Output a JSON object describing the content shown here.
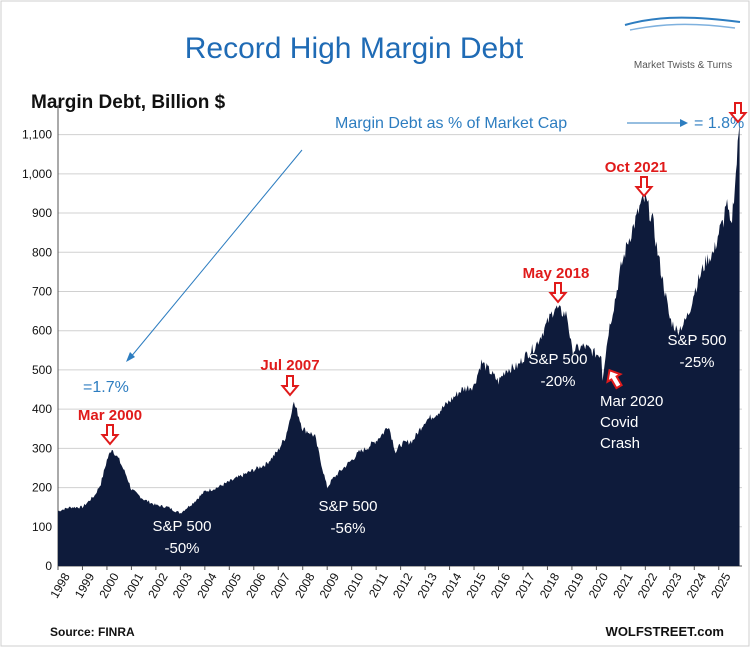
{
  "header": {
    "title": "Record High Margin Debt",
    "logo_text": "Market Twists & Turns"
  },
  "colors": {
    "area": "#0e1b3b",
    "title": "#1f6bb5",
    "annotation_red": "#e01b1b",
    "annotation_blue": "#2d7dc0",
    "grid": "#d0d0d0",
    "text": "#111111",
    "white": "#ffffff"
  },
  "footer": {
    "source": "Source: FINRA",
    "brand": "WOLFSTREET.com"
  },
  "chart_data": {
    "type": "area",
    "title": "Record High Margin Debt",
    "ylabel": "Margin Debt, Billion $",
    "xlabel": "",
    "ylim": [
      0,
      1150
    ],
    "xlim": [
      1998,
      2025.95
    ],
    "grid": true,
    "y_ticks": [
      0,
      100,
      200,
      300,
      400,
      500,
      600,
      700,
      800,
      900,
      1000,
      1100
    ],
    "y_tick_labels": [
      "0",
      "100",
      "200",
      "300",
      "400",
      "500",
      "600",
      "700",
      "800",
      "900",
      "1,000",
      "1,100"
    ],
    "x_tick_labels": [
      "1998",
      "1999",
      "2000",
      "2001",
      "2002",
      "2003",
      "2004",
      "2005",
      "2006",
      "2007",
      "2008",
      "2009",
      "2010",
      "2011",
      "2012",
      "2013",
      "2014",
      "2015",
      "2016",
      "2017",
      "2018",
      "2019",
      "2020",
      "2021",
      "2022",
      "2023",
      "2024",
      "2025"
    ],
    "series": [
      {
        "name": "",
        "x": [
          1998.0,
          1998.5,
          1999.0,
          1999.5,
          1999.75,
          2000.0,
          2000.2,
          2000.5,
          2000.8,
          2001.0,
          2001.5,
          2002.0,
          2002.5,
          2002.8,
          2003.0,
          2003.5,
          2004.0,
          2004.5,
          2005.0,
          2005.5,
          2006.0,
          2006.5,
          2006.8,
          2007.0,
          2007.3,
          2007.5,
          2007.6,
          2007.8,
          2008.0,
          2008.3,
          2008.5,
          2008.8,
          2009.0,
          2009.2,
          2009.5,
          2010.0,
          2010.3,
          2010.6,
          2011.0,
          2011.3,
          2011.5,
          2011.8,
          2012.0,
          2012.5,
          2013.0,
          2013.5,
          2014.0,
          2014.5,
          2015.0,
          2015.3,
          2015.6,
          2016.0,
          2016.3,
          2016.8,
          2017.0,
          2017.5,
          2018.0,
          2018.3,
          2018.5,
          2018.8,
          2019.0,
          2019.5,
          2020.0,
          2020.2,
          2020.25,
          2020.5,
          2020.8,
          2021.0,
          2021.3,
          2021.6,
          2021.8,
          2022.0,
          2022.3,
          2022.5,
          2022.8,
          2023.0,
          2023.3,
          2023.6,
          2023.8,
          2024.0,
          2024.3,
          2024.5,
          2024.8,
          2025.0,
          2025.2,
          2025.3,
          2025.5,
          2025.7,
          2025.85
        ],
        "values": [
          140,
          150,
          150,
          180,
          210,
          270,
          300,
          270,
          230,
          195,
          170,
          155,
          150,
          140,
          135,
          160,
          190,
          200,
          215,
          230,
          245,
          260,
          280,
          295,
          330,
          380,
          420,
          390,
          350,
          340,
          330,
          250,
          200,
          220,
          240,
          270,
          290,
          300,
          320,
          340,
          360,
          290,
          310,
          320,
          370,
          390,
          420,
          450,
          460,
          520,
          500,
          470,
          500,
          510,
          530,
          560,
          620,
          660,
          650,
          640,
          550,
          560,
          540,
          540,
          480,
          600,
          690,
          760,
          830,
          880,
          920,
          935,
          880,
          800,
          700,
          630,
          600,
          620,
          650,
          700,
          750,
          780,
          800,
          850,
          880,
          930,
          860,
          1000,
          1130
        ]
      }
    ],
    "annotations": [
      {
        "text": "Mar 2000",
        "color": "red",
        "arrow": "down"
      },
      {
        "text": "Jul 2007",
        "color": "red",
        "arrow": "down"
      },
      {
        "text": "May 2018",
        "color": "red",
        "arrow": "down"
      },
      {
        "text": "Oct 2021",
        "color": "red",
        "arrow": "down"
      },
      {
        "text": "=1.7%",
        "color": "blue"
      },
      {
        "text": "Margin Debt as % of Market Cap",
        "color": "blue"
      },
      {
        "text": "= 1.8%",
        "color": "blue"
      },
      {
        "text": "S&P 500",
        "sub": "-50%"
      },
      {
        "text": "S&P 500",
        "sub": "-56%"
      },
      {
        "text": "S&P 500",
        "sub": "-20%"
      },
      {
        "text": "S&P 500",
        "sub": "-25%"
      },
      {
        "text": "Mar 2020",
        "sub1": "Covid",
        "sub2": "Crash"
      }
    ]
  }
}
